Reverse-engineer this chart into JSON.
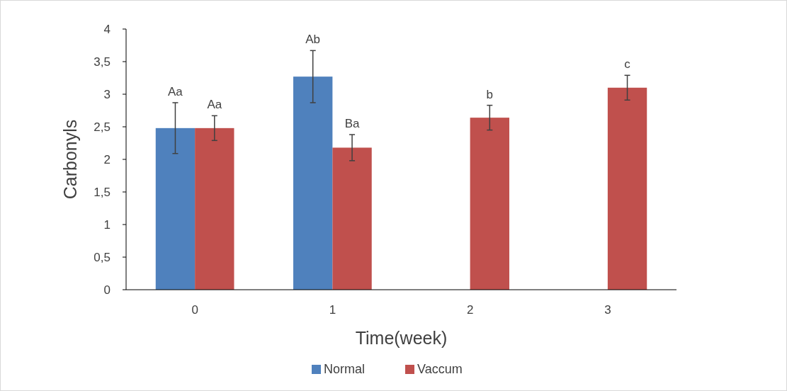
{
  "chart_data": {
    "type": "bar",
    "xlabel": "Time(week)",
    "ylabel": "Carbonyls",
    "categories": [
      "0",
      "1",
      "2",
      "3"
    ],
    "series": [
      {
        "name": "Normal",
        "color": "#4f81bd",
        "values": [
          2.48,
          3.27,
          null,
          null
        ],
        "errors": [
          0.39,
          0.4,
          null,
          null
        ]
      },
      {
        "name": "Vaccum",
        "color": "#c0504d",
        "values": [
          2.48,
          2.18,
          2.64,
          3.1
        ],
        "errors": [
          0.19,
          0.2,
          0.19,
          0.19
        ]
      }
    ],
    "ylim": [
      0,
      4
    ],
    "yticks": [
      0,
      {
        "value": 0.5,
        "label": "0,5"
      },
      1,
      {
        "value": 1.5,
        "label": "1,5"
      },
      2,
      {
        "value": 2.5,
        "label": "2,5"
      },
      3,
      {
        "value": 3.5,
        "label": "3,5"
      },
      4
    ],
    "annotations": [
      {
        "text": "Aa",
        "x": "0",
        "y": 2.48
      },
      {
        "text": "Aa",
        "x": "0",
        "y": 2.48
      },
      {
        "text": "Ab",
        "x": "1",
        "y": 3.27
      },
      {
        "text": "Ba",
        "x": "1",
        "y": 2.18
      },
      {
        "text": "b",
        "x": "2",
        "y": 2.64
      },
      {
        "text": "c",
        "x": "3",
        "y": 3.1
      }
    ],
    "grid": false,
    "legend": "bottom"
  }
}
